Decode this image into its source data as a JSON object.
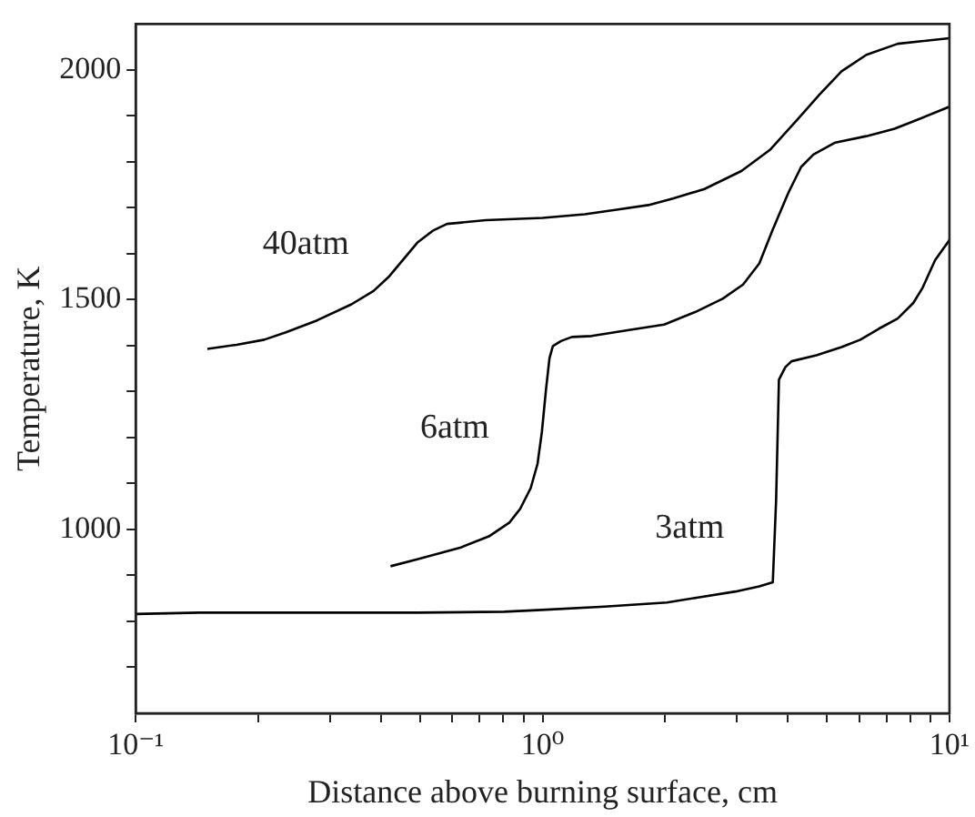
{
  "chart_data": {
    "type": "line",
    "xlabel": "Distance above burning surface, cm",
    "ylabel": "Temperature, K",
    "log": "x",
    "xlim": [
      0.1,
      10
    ],
    "ylim": [
      600,
      2100
    ],
    "xticks": [
      {
        "value": 0.1,
        "label": "10⁻¹"
      },
      {
        "value": 0.2,
        "label": null
      },
      {
        "value": 0.3,
        "label": null
      },
      {
        "value": 0.4,
        "label": null
      },
      {
        "value": 0.5,
        "label": null
      },
      {
        "value": 0.6,
        "label": null
      },
      {
        "value": 0.7,
        "label": null
      },
      {
        "value": 0.8,
        "label": null
      },
      {
        "value": 0.9,
        "label": null
      },
      {
        "value": 1,
        "label": "10⁰"
      },
      {
        "value": 2,
        "label": null
      },
      {
        "value": 3,
        "label": null
      },
      {
        "value": 4,
        "label": null
      },
      {
        "value": 5,
        "label": null
      },
      {
        "value": 6,
        "label": null
      },
      {
        "value": 7,
        "label": null
      },
      {
        "value": 8,
        "label": null
      },
      {
        "value": 9,
        "label": null
      },
      {
        "value": 10,
        "label": "10¹"
      }
    ],
    "yticks": [
      {
        "value": 700,
        "label": null
      },
      {
        "value": 800,
        "label": null
      },
      {
        "value": 900,
        "label": null
      },
      1000,
      {
        "value": 1100,
        "label": null
      },
      {
        "value": 1200,
        "label": null
      },
      {
        "value": 1300,
        "label": null
      },
      {
        "value": 1400,
        "label": null
      },
      1500,
      {
        "value": 1600,
        "label": null
      },
      {
        "value": 1700,
        "label": null
      },
      {
        "value": 1800,
        "label": null
      },
      {
        "value": 1900,
        "label": null
      },
      2000
    ],
    "grid": false,
    "legend": false,
    "marker": "none",
    "line_style": "solid",
    "series": [
      {
        "name": "40atm",
        "color": "#000000",
        "x": [
          0.15,
          0.177,
          0.207,
          0.234,
          0.279,
          0.339,
          0.384,
          0.42,
          0.492,
          0.537,
          0.582,
          0.725,
          1.0,
          1.27,
          1.52,
          1.82,
          2.09,
          2.5,
          3.08,
          3.62,
          4.24,
          4.8,
          5.43,
          6.25,
          7.46,
          10
        ],
        "values": [
          1393,
          1402,
          1413,
          1429,
          1455,
          1490,
          1519,
          1551,
          1624,
          1650,
          1665,
          1673,
          1678,
          1686,
          1696,
          1706,
          1720,
          1741,
          1780,
          1826,
          1893,
          1947,
          1997,
          2033,
          2057,
          2069
        ]
      },
      {
        "name": "6atm",
        "color": "#000000",
        "x": [
          0.423,
          0.492,
          0.63,
          0.738,
          0.829,
          0.881,
          0.935,
          0.972,
          0.996,
          1.02,
          1.04,
          1.06,
          1.11,
          1.18,
          1.32,
          1.63,
          1.99,
          2.37,
          2.77,
          3.11,
          3.41,
          3.68,
          4.02,
          4.32,
          4.63,
          5.24,
          6.25,
          7.33,
          8.3,
          10
        ],
        "values": [
          920,
          935,
          961,
          985,
          1015,
          1045,
          1090,
          1143,
          1212,
          1306,
          1373,
          1399,
          1410,
          1419,
          1421,
          1434,
          1446,
          1473,
          1502,
          1533,
          1579,
          1653,
          1733,
          1789,
          1816,
          1842,
          1856,
          1872,
          1891,
          1920
        ]
      },
      {
        "name": "3atm",
        "color": "#000000",
        "x": [
          0.1,
          0.143,
          0.243,
          0.492,
          0.805,
          0.996,
          1.42,
          2.02,
          2.41,
          2.98,
          3.41,
          3.68,
          3.75,
          3.81,
          3.95,
          4.09,
          4.71,
          5.43,
          6.04,
          6.71,
          7.46,
          8.15,
          8.59,
          9.22,
          10
        ],
        "values": [
          816,
          819,
          819,
          819,
          821,
          825,
          832,
          841,
          852,
          865,
          876,
          885,
          1065,
          1326,
          1353,
          1366,
          1379,
          1397,
          1413,
          1437,
          1459,
          1493,
          1526,
          1586,
          1630
        ]
      }
    ]
  }
}
